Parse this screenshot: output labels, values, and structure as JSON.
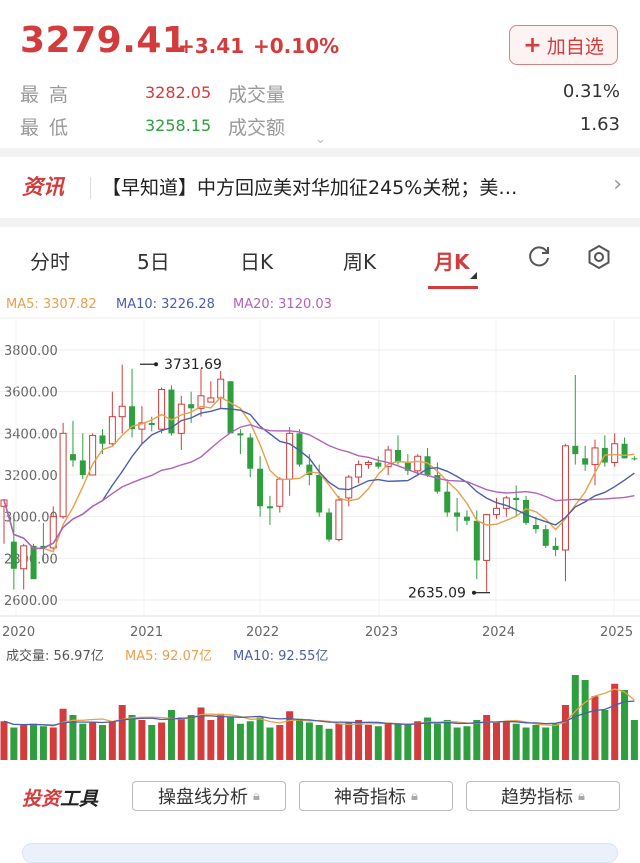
{
  "quote": {
    "price": "3279.41",
    "change": "+3.41",
    "change_pct": "+0.10%",
    "add_label": "加自选",
    "high_label": "最高",
    "high_value": "3282.05",
    "low_label": "最低",
    "low_value": "3258.15",
    "volume_label": "成交量",
    "volume_value": "0.31%",
    "amount_label": "成交额",
    "amount_value": "1.63"
  },
  "news": {
    "tag": "资讯",
    "text": "【早知道】中方回应美对华加征245%关税；美…"
  },
  "tabs": [
    "分时",
    "5日",
    "日K",
    "周K",
    "月K"
  ],
  "active_tab": "月K",
  "colors": {
    "up": "#d23c3c",
    "down": "#2e9e3e",
    "ma5": "#e8a04c",
    "ma10": "#4b5fa8",
    "ma20": "#b163b8"
  },
  "chart_data": {
    "type": "candlestick",
    "ma_legend": {
      "ma5": "MA5: 3307.82",
      "ma10": "MA10: 3226.28",
      "ma20": "MA20: 3120.03"
    },
    "y_ticks": [
      "3800.00",
      "3600.00",
      "3400.00",
      "3200.00",
      "3000.00",
      "2800.00",
      "2600.00"
    ],
    "x_ticks": [
      "2020",
      "2021",
      "2022",
      "2023",
      "2024",
      "2025"
    ],
    "ylim": [
      2600,
      3800
    ],
    "max_label": "3731.69",
    "min_label": "2635.09",
    "candles": [
      [
        3050,
        3085,
        2870,
        3080
      ],
      [
        2880,
        3010,
        2650,
        2750
      ],
      [
        2750,
        2870,
        2650,
        2860
      ],
      [
        2860,
        2870,
        2700,
        2700
      ],
      [
        2860,
        2970,
        2780,
        2850
      ],
      [
        2850,
        3050,
        2840,
        3000
      ],
      [
        3000,
        3450,
        2990,
        3400
      ],
      [
        3300,
        3460,
        3240,
        3270
      ],
      [
        3270,
        3400,
        3180,
        3200
      ],
      [
        3200,
        3400,
        3200,
        3390
      ],
      [
        3390,
        3420,
        3300,
        3350
      ],
      [
        3350,
        3600,
        3340,
        3480
      ],
      [
        3480,
        3730,
        3400,
        3530
      ],
      [
        3530,
        3710,
        3380,
        3420
      ],
      [
        3420,
        3530,
        3350,
        3450
      ],
      [
        3450,
        3480,
        3410,
        3440
      ],
      [
        3420,
        3620,
        3400,
        3610
      ],
      [
        3610,
        3630,
        3390,
        3400
      ],
      [
        3400,
        3580,
        3320,
        3540
      ],
      [
        3540,
        3600,
        3450,
        3520
      ],
      [
        3520,
        3710,
        3480,
        3580
      ],
      [
        3550,
        3650,
        3550,
        3570
      ],
      [
        3570,
        3700,
        3520,
        3660
      ],
      [
        3650,
        3650,
        3400,
        3400
      ],
      [
        3400,
        3420,
        3300,
        3390
      ],
      [
        3380,
        3400,
        3190,
        3230
      ],
      [
        3230,
        3290,
        3000,
        3050
      ],
      [
        3050,
        3100,
        2960,
        3040
      ],
      [
        3050,
        3190,
        3020,
        3180
      ],
      [
        3180,
        3430,
        3100,
        3400
      ],
      [
        3400,
        3420,
        3240,
        3250
      ],
      [
        3250,
        3300,
        3150,
        3200
      ],
      [
        3200,
        3250,
        3000,
        3020
      ],
      [
        3020,
        3040,
        2880,
        2890
      ],
      [
        2890,
        3100,
        2880,
        3080
      ],
      [
        3090,
        3200,
        3050,
        3190
      ],
      [
        3190,
        3270,
        3160,
        3250
      ],
      [
        3250,
        3270,
        3230,
        3260
      ],
      [
        3260,
        3290,
        3230,
        3240
      ],
      [
        3240,
        3340,
        3200,
        3320
      ],
      [
        3320,
        3390,
        3250,
        3260
      ],
      [
        3260,
        3300,
        3200,
        3220
      ],
      [
        3220,
        3300,
        3200,
        3290
      ],
      [
        3290,
        3330,
        3190,
        3200
      ],
      [
        3200,
        3260,
        3110,
        3120
      ],
      [
        3120,
        3180,
        3000,
        3020
      ],
      [
        3020,
        3090,
        2930,
        3000
      ],
      [
        3000,
        3030,
        2960,
        2980
      ],
      [
        2980,
        3030,
        2700,
        2790
      ],
      [
        2790,
        3000,
        2640,
        3010
      ],
      [
        3010,
        3090,
        2990,
        3040
      ],
      [
        3040,
        3100,
        3000,
        3090
      ],
      [
        3090,
        3150,
        3000,
        3080
      ],
      [
        3080,
        3100,
        2960,
        2970
      ],
      [
        2960,
        3000,
        2920,
        2940
      ],
      [
        2940,
        2960,
        2850,
        2860
      ],
      [
        2860,
        2900,
        2810,
        2840
      ],
      [
        2840,
        3350,
        2690,
        3340
      ],
      [
        3340,
        3680,
        3250,
        3300
      ],
      [
        3280,
        3340,
        3220,
        3250
      ],
      [
        3250,
        3370,
        3150,
        3330
      ],
      [
        3330,
        3390,
        3240,
        3260
      ],
      [
        3260,
        3400,
        3240,
        3350
      ],
      [
        3350,
        3380,
        3280,
        3280
      ],
      [
        3280,
        3290,
        3270,
        3279
      ]
    ],
    "volume_legend": {
      "vol": "成交量: 56.97亿",
      "ma5": "MA5: 92.07亿",
      "ma10": "MA10: 92.55亿"
    },
    "volumes": [
      35,
      30,
      32,
      33,
      31,
      30,
      45,
      40,
      33,
      34,
      32,
      35,
      48,
      40,
      36,
      32,
      34,
      44,
      38,
      40,
      46,
      36,
      41,
      38,
      33,
      35,
      38,
      30,
      32,
      43,
      37,
      34,
      32,
      29,
      33,
      34,
      36,
      32,
      31,
      34,
      33,
      32,
      35,
      38,
      33,
      36,
      30,
      31,
      36,
      40,
      34,
      35,
      33,
      30,
      32,
      30,
      33,
      48,
      72,
      68,
      55,
      44,
      65,
      60,
      36
    ]
  },
  "tools": {
    "title_a": "投资",
    "title_b": "工具",
    "btn1": "操盘线分析",
    "btn2": "神奇指标",
    "btn3": "趋势指标"
  }
}
